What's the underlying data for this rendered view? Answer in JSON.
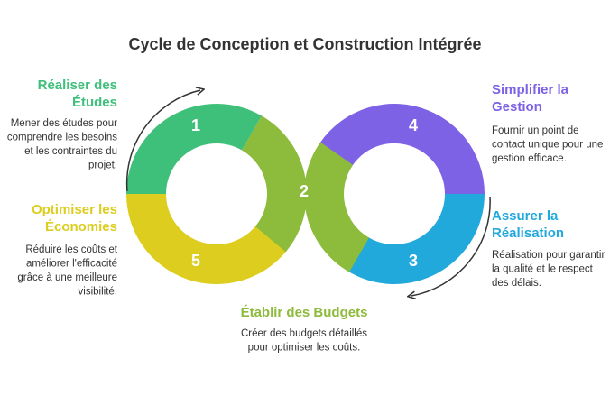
{
  "title": "Cycle de Conception et Construction Intégrée",
  "steps": [
    {
      "number": "1",
      "heading": [
        "Réaliser des",
        "Études"
      ],
      "description": [
        "Mener des études pour",
        "comprendre les besoins",
        "et les contraintes du",
        "projet."
      ]
    },
    {
      "number": "2",
      "heading": [
        "Établir des Budgets"
      ],
      "description": [
        "Créer des budgets détaillés",
        "pour optimiser les coûts."
      ]
    },
    {
      "number": "3",
      "heading": [
        "Assurer la",
        "Réalisation"
      ],
      "description": [
        "Réalisation pour garantir",
        "la qualité et le respect",
        "des délais."
      ]
    },
    {
      "number": "4",
      "heading": [
        "Simplifier la",
        "Gestion"
      ],
      "description": [
        "Fournir un point de",
        "contact unique pour une",
        "gestion efficace."
      ]
    },
    {
      "number": "5",
      "heading": [
        "Optimiser les",
        "Économies"
      ],
      "description": [
        "Réduire les coûts et",
        "améliorer l'efficacité",
        "grâce à une meilleure",
        "visibilité."
      ]
    }
  ]
}
